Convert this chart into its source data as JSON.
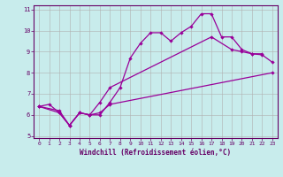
{
  "xlabel": "Windchill (Refroidissement éolien,°C)",
  "bg_color": "#c8ecec",
  "line_color": "#990099",
  "grid_color": "#b0b0b0",
  "xlim": [
    -0.5,
    23.5
  ],
  "ylim": [
    4.9,
    11.2
  ],
  "xticks": [
    0,
    1,
    2,
    3,
    4,
    5,
    6,
    7,
    8,
    9,
    10,
    11,
    12,
    13,
    14,
    15,
    16,
    17,
    18,
    19,
    20,
    21,
    22,
    23
  ],
  "yticks": [
    5,
    6,
    7,
    8,
    9,
    10,
    11
  ],
  "s1_x": [
    0,
    1,
    2,
    3,
    4,
    5,
    6,
    7,
    8,
    9,
    10,
    11,
    12,
    13,
    14,
    15,
    16,
    17,
    18,
    19,
    20,
    21,
    22
  ],
  "s1_y": [
    6.4,
    6.5,
    6.1,
    5.5,
    6.1,
    6.0,
    6.0,
    6.6,
    7.3,
    8.7,
    9.4,
    9.9,
    9.9,
    9.5,
    9.9,
    10.2,
    10.8,
    10.8,
    9.7,
    9.7,
    9.1,
    8.9,
    8.9
  ],
  "s2_x": [
    0,
    2,
    3,
    4,
    5,
    6,
    7,
    17,
    19,
    20,
    21,
    22,
    23
  ],
  "s2_y": [
    6.4,
    6.1,
    5.5,
    6.1,
    6.0,
    6.6,
    7.3,
    9.7,
    9.1,
    9.0,
    8.9,
    8.85,
    8.5
  ],
  "s3_x": [
    0,
    2,
    3,
    4,
    5,
    6,
    7,
    23
  ],
  "s3_y": [
    6.4,
    6.2,
    5.5,
    6.1,
    6.0,
    6.1,
    6.5,
    8.0
  ]
}
